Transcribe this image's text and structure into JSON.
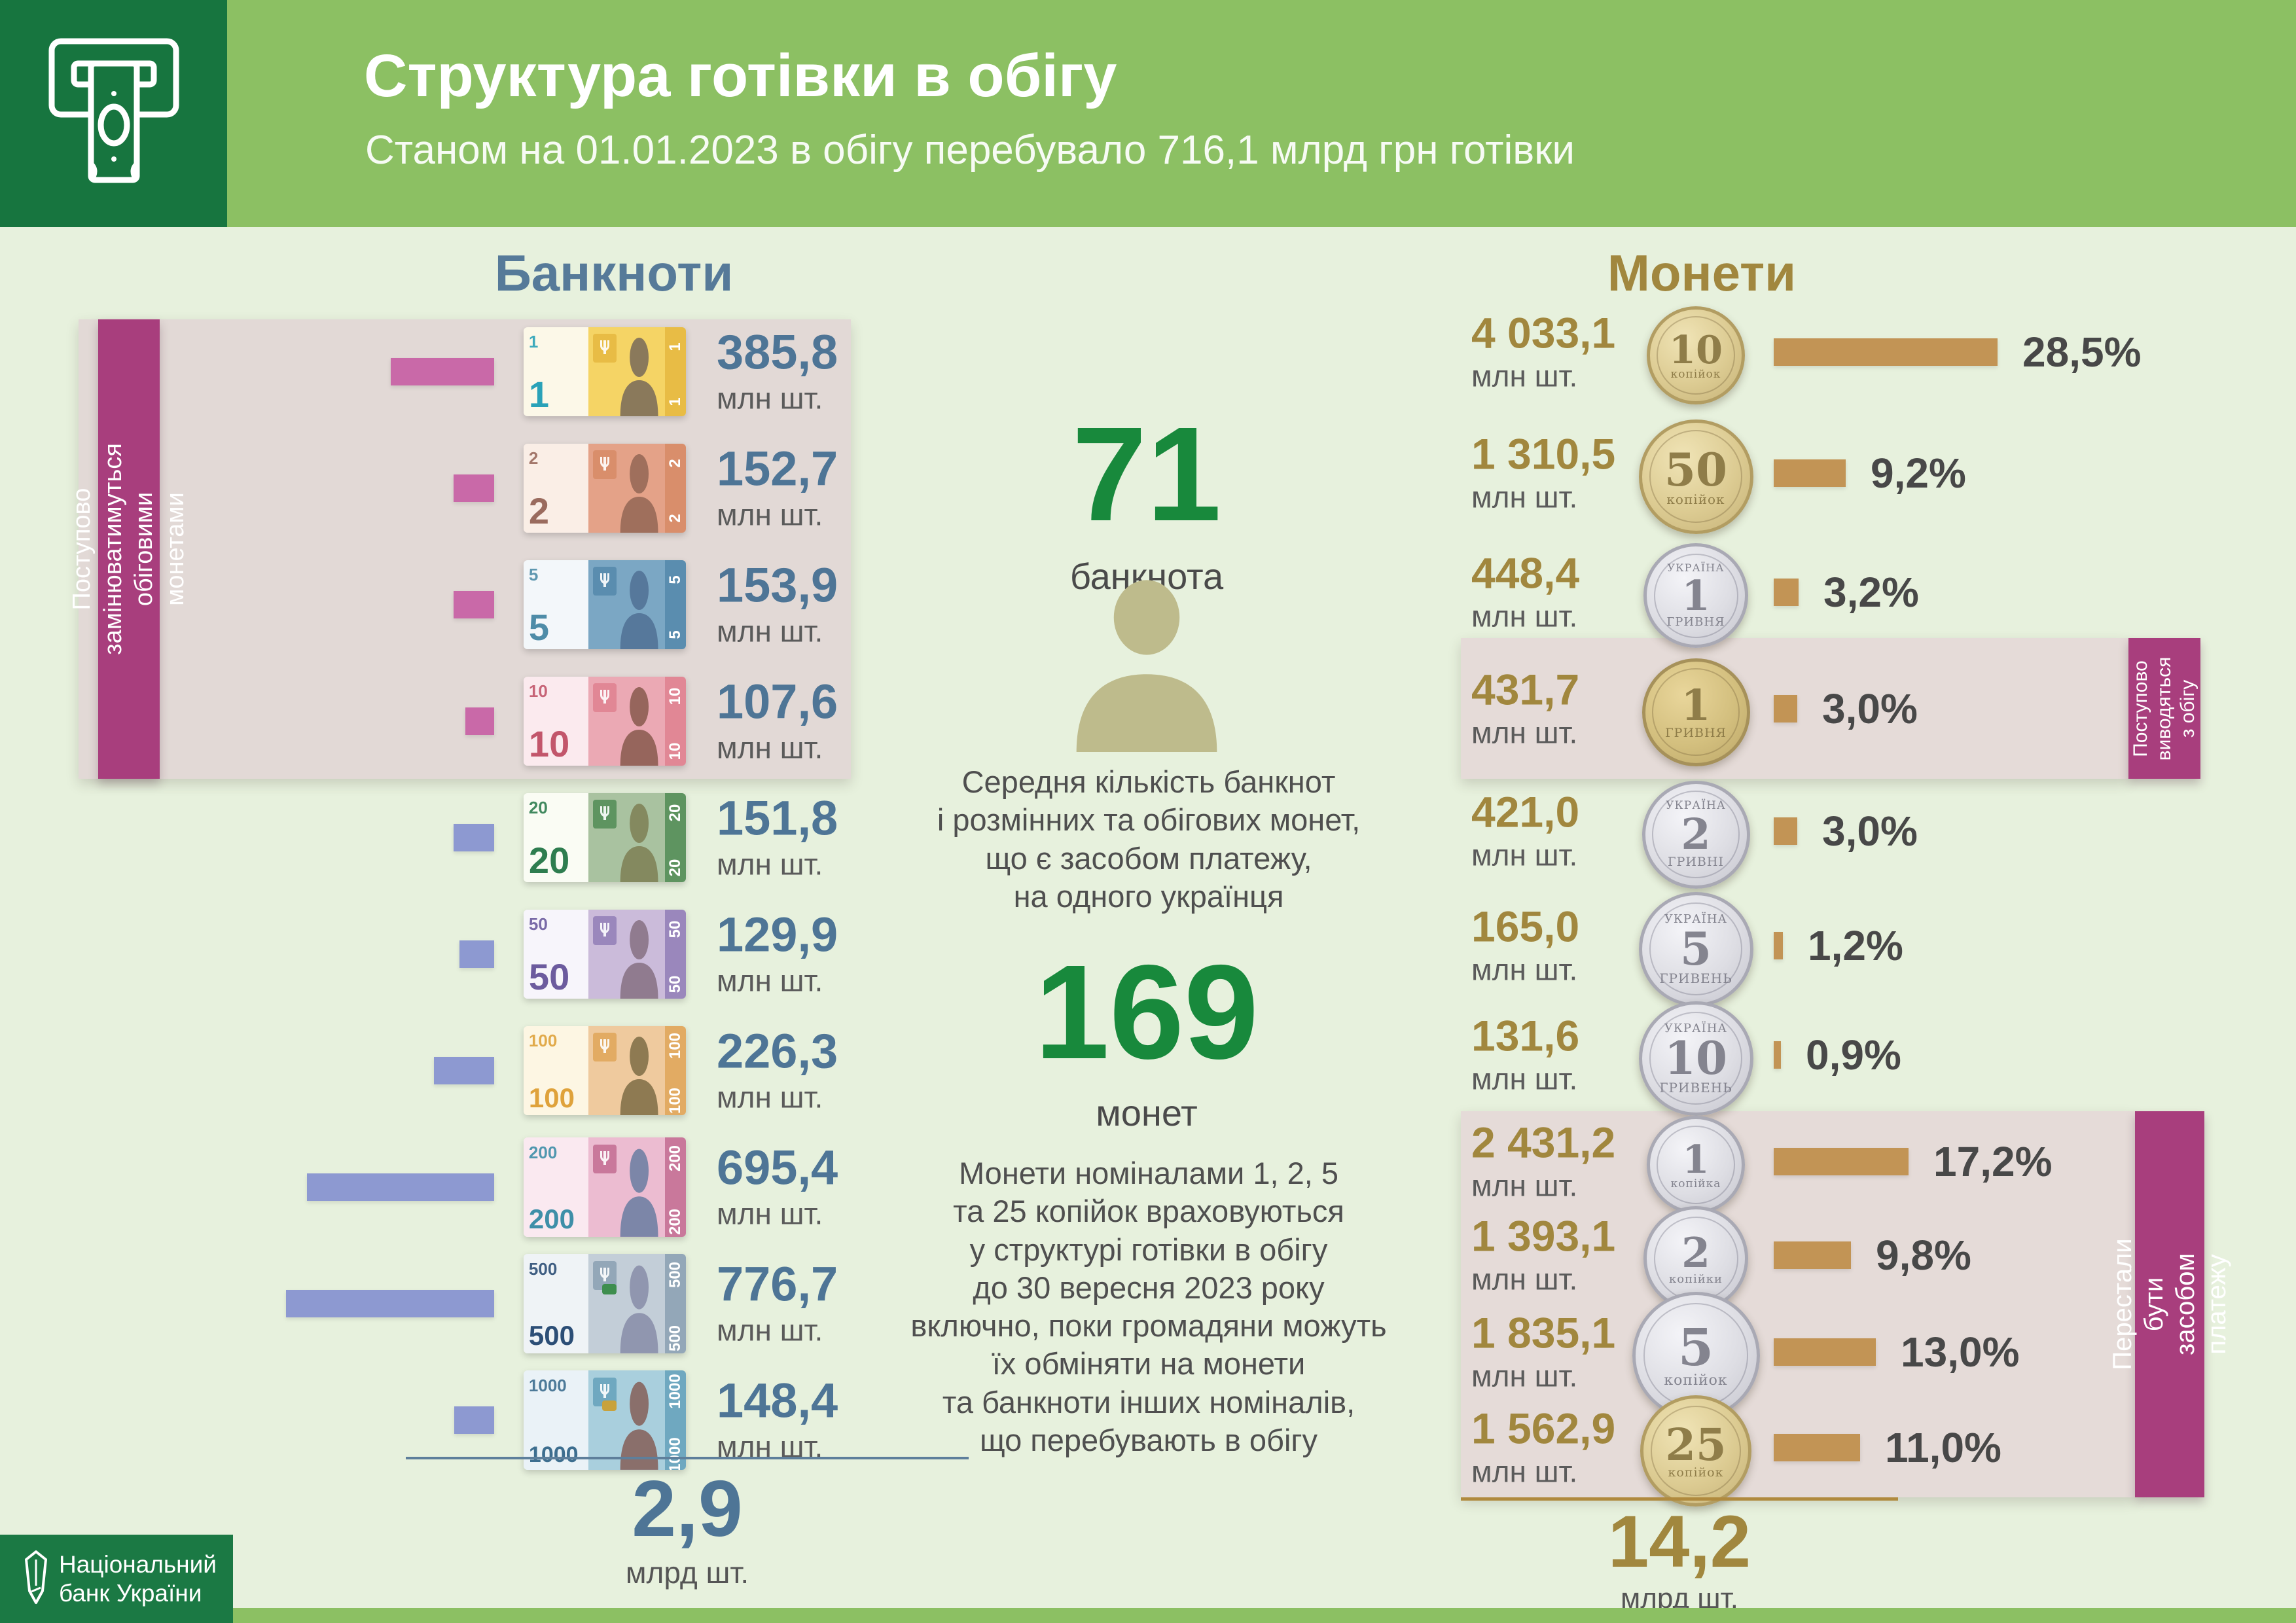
{
  "header": {
    "title": "Структура готівки в обігу",
    "subtitle": "Станом на 01.01.2023 в обігу перебувало 716,1 млрд грн готівки"
  },
  "banknotes": {
    "title": "Банкноти",
    "sidebar_lines": [
      "Поступово  замінюватимуться",
      "обіговими монетами"
    ],
    "unit": "млн шт.",
    "rows": [
      {
        "denom": "1",
        "pct": "13,2%",
        "pct_val": 13.2,
        "count": "385,8",
        "group": "replaced",
        "art": {
          "left": "#FCF8E8",
          "right": "#F5D465",
          "band": "#E8BC45",
          "num": "#2AA2B8",
          "sil": "#8A795B"
        }
      },
      {
        "denom": "2",
        "pct": "5,2%",
        "pct_val": 5.2,
        "count": "152,7",
        "group": "replaced",
        "art": {
          "left": "#FAEEE6",
          "right": "#E4A288",
          "band": "#D98E6B",
          "num": "#9A6B5E",
          "sil": "#9F6F5C"
        }
      },
      {
        "denom": "5",
        "pct": "5,2%",
        "pct_val": 5.2,
        "count": "153,9",
        "group": "replaced",
        "art": {
          "left": "#F3F7FA",
          "right": "#7BA7C4",
          "band": "#5A8DAF",
          "num": "#4E8CA8",
          "sil": "#56789B"
        }
      },
      {
        "denom": "10",
        "pct": "3,7%",
        "pct_val": 3.7,
        "count": "107,6",
        "group": "replaced",
        "art": {
          "left": "#FBEAEE",
          "right": "#EBA9B4",
          "band": "#E18795",
          "num": "#C2566B",
          "sil": "#96655C"
        }
      },
      {
        "denom": "20",
        "pct": "5,2%",
        "pct_val": 5.2,
        "count": "151,8",
        "group": "current",
        "art": {
          "left": "#FAFCF4",
          "right": "#A9C2A0",
          "band": "#5E9460",
          "num": "#2E7D4F",
          "sil": "#84895F"
        }
      },
      {
        "denom": "50",
        "pct": "4,4%",
        "pct_val": 4.4,
        "count": "129,9",
        "group": "current",
        "art": {
          "left": "#F7F5FB",
          "right": "#CBBBDA",
          "band": "#9A87BC",
          "num": "#6C5B9E",
          "sil": "#907B8F"
        }
      },
      {
        "denom": "100",
        "pct": "7,7%",
        "pct_val": 7.7,
        "count": "226,3",
        "group": "current",
        "art": {
          "left": "#FDF6E3",
          "right": "#EFCA9E",
          "band": "#E2AB63",
          "num": "#DFA23B",
          "sil": "#8E7A52"
        }
      },
      {
        "denom": "200",
        "pct": "23,8%",
        "pct_val": 23.8,
        "count": "695,4",
        "group": "current",
        "art": {
          "left": "#FAE9F0",
          "right": "#ECBCD1",
          "band": "#C9789B",
          "num": "#3E8FA8",
          "sil": "#7C86A8"
        }
      },
      {
        "denom": "500",
        "pct": "26,5%",
        "pct_val": 26.5,
        "count": "776,7",
        "group": "current",
        "art": {
          "left": "#EFF3F6",
          "right": "#C3CED8",
          "band": "#93A7B8",
          "num": "#2C4E76",
          "sil": "#9096AF",
          "accent": "#3E8E4E"
        }
      },
      {
        "denom": "1000",
        "pct": "5,1%",
        "pct_val": 5.1,
        "count": "148,4",
        "group": "current",
        "art": {
          "left": "#EAF2F7",
          "right": "#A9CFDD",
          "band": "#6FA8C0",
          "num": "#3D6E8F",
          "sil": "#8A6F6B",
          "accent": "#C8A23C"
        }
      }
    ],
    "total": {
      "value": "2,9",
      "unit": "млрд шт."
    }
  },
  "center": {
    "banknote_stat": {
      "value": "71",
      "label": "банкнота"
    },
    "person_caption_lines": [
      "Середня кількість банкнот",
      "і розмінних та обігових монет,",
      "що є засобом платежу,",
      "на одного українця"
    ],
    "coin_stat": {
      "value": "169",
      "label": "монет"
    },
    "note_lines": [
      "Монети  номіналами 1, 2, 5",
      "та 25 копійок враховуються",
      "у структурі готівки в обігу",
      "до 30 вересня 2023 року",
      "включно, поки громадяни можуть",
      "їх обміняти на монети",
      "та банкноти інших номіналів,",
      "що перебувають  в  обігу"
    ]
  },
  "coins": {
    "title": "Монети",
    "unit": "млн шт.",
    "tag_withdrawn_lines": [
      "Поступово",
      "виводяться",
      "з обігу"
    ],
    "tag_no_tender_lines": [
      "Перестали бути засобом  платежу"
    ],
    "rows": [
      {
        "count": "4 033,1",
        "pct": "28,5%",
        "pct_val": 28.5,
        "value": "10",
        "caption": "копійок",
        "metal": "gold",
        "country": "",
        "size": 140
      },
      {
        "count": "1 310,5",
        "pct": "9,2%",
        "pct_val": 9.2,
        "value": "50",
        "caption": "копійок",
        "metal": "gold",
        "country": "",
        "size": 165
      },
      {
        "count": "448,4",
        "pct": "3,2%",
        "pct_val": 3.2,
        "value": "1",
        "caption": "ГРИВНЯ",
        "metal": "silver",
        "country": "УКРАЇНА",
        "size": 150
      },
      {
        "count": "431,7",
        "pct": "3,0%",
        "pct_val": 3.0,
        "value": "1",
        "caption": "ГРИВНЯ",
        "metal": "goldold",
        "country": "",
        "size": 155,
        "highlight": "withdrawn"
      },
      {
        "count": "421,0",
        "pct": "3,0%",
        "pct_val": 3.0,
        "value": "2",
        "caption": "ГРИВНІ",
        "metal": "silver",
        "country": "УКРАЇНА",
        "size": 155
      },
      {
        "count": "165,0",
        "pct": "1,2%",
        "pct_val": 1.2,
        "value": "5",
        "caption": "ГРИВЕНЬ",
        "metal": "silver",
        "country": "УКРАЇНА",
        "size": 165
      },
      {
        "count": "131,6",
        "pct": "0,9%",
        "pct_val": 0.9,
        "value": "10",
        "caption": "ГРИВЕНЬ",
        "metal": "silver",
        "country": "УКРАЇНА",
        "size": 165
      },
      {
        "count": "2 431,2",
        "pct": "17,2%",
        "pct_val": 17.2,
        "value": "1",
        "caption": "копійка",
        "metal": "silver",
        "country": "",
        "size": 140,
        "highlight": "no_tender"
      },
      {
        "count": "1 393,1",
        "pct": "9,8%",
        "pct_val": 9.8,
        "value": "2",
        "caption": "копійки",
        "metal": "silver",
        "country": "",
        "size": 150,
        "highlight": "no_tender"
      },
      {
        "count": "1 835,1",
        "pct": "13,0%",
        "pct_val": 13.0,
        "value": "5",
        "caption": "копійок",
        "metal": "silver",
        "country": "",
        "size": 185,
        "highlight": "no_tender"
      },
      {
        "count": "1 562,9",
        "pct": "11,0%",
        "pct_val": 11.0,
        "value": "25",
        "caption": "копійок",
        "metal": "gold",
        "country": "",
        "size": 160,
        "highlight": "no_tender"
      }
    ],
    "total": {
      "value": "14,2",
      "unit": "млрд шт."
    }
  },
  "footer": {
    "org_lines": [
      "Національний",
      "банк України"
    ]
  },
  "colors": {
    "header_green": "#8CC063",
    "dark_green": "#17753F",
    "footer_green": "#1B7944",
    "steel_blue": "#4E7596",
    "pink_bar": "#C969A8",
    "periwinkle_bar": "#8D99D1",
    "gold_bar": "#C29455",
    "gold_text": "#A1873E",
    "magenta": "#A83E7D",
    "panel_dusty": "#E2D9D6",
    "stat_green": "#18893C",
    "text_dark": "#4A4A4A"
  },
  "chart_data": [
    {
      "type": "bar",
      "title": "Банкноти",
      "orientation": "horizontal",
      "bar_color": "#C969A8 (1–10 грн), #8D99D1 (20–1000 грн)",
      "categories": [
        "1",
        "2",
        "5",
        "10",
        "20",
        "50",
        "100",
        "200",
        "500",
        "1000"
      ],
      "values_pct": [
        13.2,
        5.2,
        5.2,
        3.7,
        5.2,
        4.4,
        7.7,
        23.8,
        26.5,
        5.1
      ],
      "counts_mln": [
        385.8,
        152.7,
        153.9,
        107.6,
        151.8,
        129.9,
        226.3,
        695.4,
        776.7,
        148.4
      ],
      "total_mlrd": 2.9,
      "unit": "млн шт.",
      "annotation": "Поступово замінюватимуться обіговими монетами (1–10 грн)"
    },
    {
      "type": "bar",
      "title": "Монети",
      "orientation": "horizontal",
      "bar_color": "#C29455",
      "categories": [
        "10 коп",
        "50 коп",
        "1 грн",
        "1 грн (стара)",
        "2 грн",
        "5 грн",
        "10 грн",
        "1 коп",
        "2 коп",
        "5 коп",
        "25 коп"
      ],
      "values_pct": [
        28.5,
        9.2,
        3.2,
        3.0,
        3.0,
        1.2,
        0.9,
        17.2,
        9.8,
        13.0,
        11.0
      ],
      "counts_mln": [
        4033.1,
        1310.5,
        448.4,
        431.7,
        421.0,
        165.0,
        131.6,
        2431.2,
        1393.1,
        1835.1,
        1562.9
      ],
      "total_mlrd": 14.2,
      "unit": "млн шт.",
      "annotations": [
        "Поступово виводяться з обігу (1 грн стара)",
        "Перестали бути засобом платежу (1, 2, 5, 25 коп)"
      ]
    }
  ]
}
